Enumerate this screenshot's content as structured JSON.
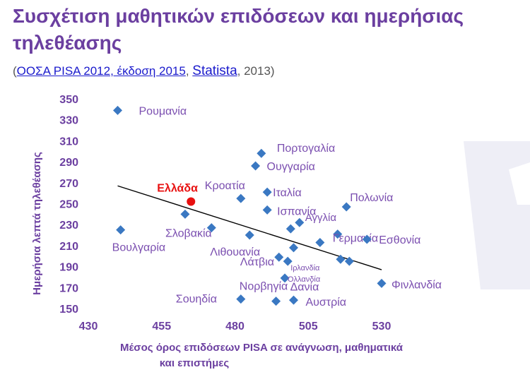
{
  "title": "Συσχέτιση μαθητικών επιδόσεων και ημερήσιας τηλεθέασης",
  "source": {
    "open": "(",
    "link1": "ΟΟΣΑ PISA 2012, έκδοση 2015",
    "sep": ", ",
    "link2": "Statista",
    "tail": ", 2013)"
  },
  "colors": {
    "title": "#6b3fa0",
    "label": "#7b4fb0",
    "point": "#3a78c2",
    "greece": "#e81010",
    "trend": "#000000"
  },
  "chart_data": {
    "type": "scatter",
    "xlabel": "Μέσος όρος επιδόσεων PISA  σε ανάγνωση, μαθηματικά και επιστήμες",
    "ylabel": "Ημερήσια λεπτά τηλεθέασης",
    "xlim": [
      430,
      530
    ],
    "ylim": [
      150,
      350
    ],
    "xticks": [
      430,
      455,
      480,
      505,
      530
    ],
    "yticks": [
      150,
      170,
      190,
      210,
      230,
      250,
      270,
      290,
      310,
      330,
      350
    ],
    "grid": false,
    "trendline": {
      "x": [
        440,
        530
      ],
      "y": [
        267,
        187
      ]
    },
    "points": [
      {
        "label": "Ρουμανία",
        "x": 440,
        "y": 339
      },
      {
        "label": "Βουλγαρία",
        "x": 441,
        "y": 225
      },
      {
        "label": "Ελλάδα",
        "x": 465,
        "y": 252,
        "highlight": true
      },
      {
        "label": "Σλοβακία",
        "x": 463,
        "y": 240
      },
      {
        "label": "Κροατία",
        "x": 482,
        "y": 255
      },
      {
        "label": "",
        "x": 472,
        "y": 227
      },
      {
        "label": "Λιθουανία",
        "x": 485,
        "y": 220
      },
      {
        "label": "Πορτογαλία",
        "x": 489,
        "y": 298
      },
      {
        "label": "Ουγγαρία",
        "x": 487,
        "y": 286
      },
      {
        "label": "Ιταλία",
        "x": 491,
        "y": 261
      },
      {
        "label": "Ισπανία",
        "x": 491,
        "y": 244
      },
      {
        "label": "Αγγλία",
        "x": 502,
        "y": 232
      },
      {
        "label": "",
        "x": 499,
        "y": 226
      },
      {
        "label": "",
        "x": 500,
        "y": 208
      },
      {
        "label": "",
        "x": 509,
        "y": 213
      },
      {
        "label": "Λάτβια",
        "x": 495,
        "y": 199
      },
      {
        "label": "Ιρλανδία",
        "x": 498,
        "y": 195
      },
      {
        "label": "Ολλανδία",
        "x": 497,
        "y": 179
      },
      {
        "label": "Νορβηγία",
        "x": 482,
        "y": 159
      },
      {
        "label": "Δανία",
        "x": 494,
        "y": 157
      },
      {
        "label": "Αυστρία",
        "x": 500,
        "y": 158
      },
      {
        "label": "Πολωνία",
        "x": 518,
        "y": 247
      },
      {
        "label": "Γερμανία",
        "x": 515,
        "y": 221
      },
      {
        "label": "Εσθονία",
        "x": 525,
        "y": 216
      },
      {
        "label": "",
        "x": 516,
        "y": 197
      },
      {
        "label": "",
        "x": 519,
        "y": 195
      },
      {
        "label": "Φινλανδία",
        "x": 530,
        "y": 174
      },
      {
        "label": "Σουηδία",
        "x": 482,
        "y": 159,
        "hidePoint": true
      }
    ]
  }
}
